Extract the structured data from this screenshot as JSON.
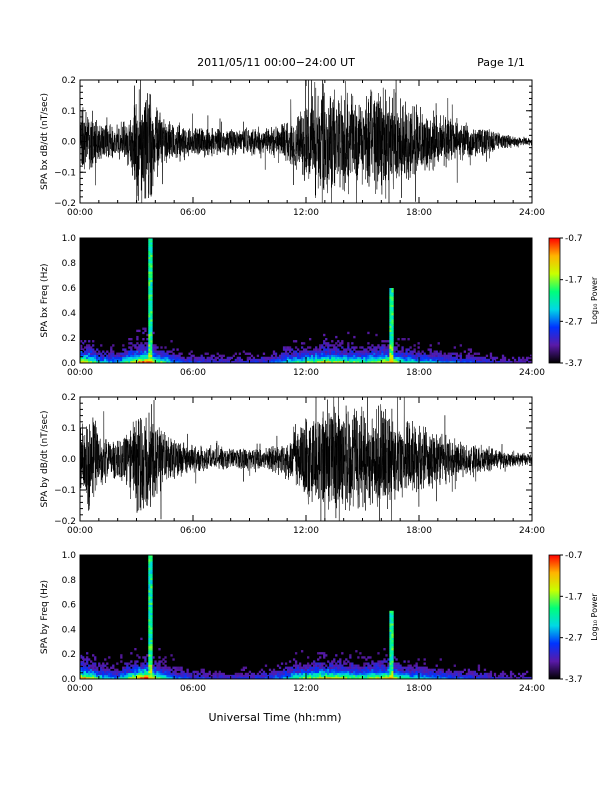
{
  "header": {
    "title": "2011/05/11  00:00−24:00 UT",
    "page": "Page 1/1"
  },
  "xlabel": "Universal Time (hh:mm)",
  "colorbar": {
    "label": "Log₁₀ Power",
    "ticks": [
      "-0.7",
      "-1.7",
      "-2.7",
      "-3.7"
    ],
    "range": [
      -3.7,
      -0.7
    ],
    "colors": [
      "#000000",
      "#5a1aa8",
      "#0033ff",
      "#00d8e6",
      "#00ff7a",
      "#c8ff00",
      "#ffb400",
      "#ff0000"
    ]
  },
  "chart_data": [
    {
      "type": "line",
      "title": "",
      "ylabel": "SPA bx dB/dt (nT/sec)",
      "xlabel": "",
      "xlim": [
        0,
        24
      ],
      "ylim": [
        -0.2,
        0.2
      ],
      "x_ticks": [
        "00:00",
        "06:00",
        "12:00",
        "18:00",
        "24:00"
      ],
      "y_ticks": [
        "0.2",
        "0.1",
        "0.0",
        "−0.1",
        "−0.2"
      ],
      "y_tick_values": [
        0.2,
        0.1,
        0.0,
        -0.1,
        -0.2
      ],
      "envelope": {
        "x": [
          0,
          0.5,
          1,
          2,
          2.5,
          3,
          3.2,
          3.5,
          3.8,
          4,
          4.5,
          5,
          6,
          7,
          8,
          9,
          10,
          11,
          11.5,
          12,
          13,
          14,
          15,
          16,
          16.5,
          17,
          18,
          19,
          20,
          21,
          22,
          23,
          24
        ],
        "amplitude": [
          0.1,
          0.12,
          0.07,
          0.06,
          0.08,
          0.2,
          0.2,
          0.2,
          0.2,
          0.15,
          0.09,
          0.07,
          0.06,
          0.05,
          0.05,
          0.05,
          0.05,
          0.08,
          0.11,
          0.15,
          0.2,
          0.2,
          0.16,
          0.2,
          0.2,
          0.15,
          0.12,
          0.1,
          0.08,
          0.06,
          0.04,
          0.02,
          0.015
        ]
      }
    },
    {
      "type": "heatmap",
      "title": "",
      "ylabel": "SPA bx Freq (Hz)",
      "xlabel": "",
      "xlim": [
        0,
        24
      ],
      "ylim": [
        0,
        1.0
      ],
      "x_ticks": [
        "00:00",
        "06:00",
        "12:00",
        "18:00",
        "24:00"
      ],
      "y_ticks": [
        "1.0",
        "0.8",
        "0.6",
        "0.4",
        "0.2",
        "0.0"
      ],
      "y_tick_values": [
        1.0,
        0.8,
        0.6,
        0.4,
        0.2,
        0.0
      ],
      "value_label": "Log₁₀ Power",
      "activity": {
        "x": [
          0,
          0.5,
          1,
          2,
          3,
          3.5,
          4,
          5,
          6,
          8,
          10,
          11,
          12,
          13,
          14,
          15,
          16,
          16.5,
          17,
          18,
          20,
          22,
          24
        ],
        "level": [
          0.8,
          0.7,
          0.45,
          0.35,
          0.8,
          1.0,
          0.7,
          0.35,
          0.25,
          0.2,
          0.25,
          0.45,
          0.6,
          0.75,
          0.65,
          0.55,
          0.75,
          0.8,
          0.55,
          0.45,
          0.3,
          0.2,
          0.15
        ]
      },
      "line_features": [
        {
          "x": 3.7,
          "fmax": 1.0
        },
        {
          "x": 16.5,
          "fmax": 0.6
        }
      ]
    },
    {
      "type": "line",
      "title": "",
      "ylabel": "SPA by dB/dt (nT/sec)",
      "xlabel": "",
      "xlim": [
        0,
        24
      ],
      "ylim": [
        -0.2,
        0.2
      ],
      "x_ticks": [
        "00:00",
        "06:00",
        "12:00",
        "18:00",
        "24:00"
      ],
      "y_ticks": [
        "0.2",
        "0.1",
        "0.0",
        "−0.1",
        "−0.2"
      ],
      "y_tick_values": [
        0.2,
        0.1,
        0.0,
        -0.1,
        -0.2
      ],
      "envelope": {
        "x": [
          0,
          0.5,
          1,
          2,
          2.5,
          3,
          3.2,
          3.5,
          3.8,
          4,
          4.5,
          5,
          6,
          7,
          8,
          9,
          10,
          11,
          11.5,
          12,
          13,
          14,
          15,
          16,
          16.5,
          17,
          18,
          19,
          20,
          21,
          22,
          23,
          24
        ],
        "amplitude": [
          0.12,
          0.2,
          0.1,
          0.07,
          0.1,
          0.2,
          0.2,
          0.2,
          0.2,
          0.16,
          0.1,
          0.07,
          0.05,
          0.04,
          0.04,
          0.04,
          0.04,
          0.07,
          0.1,
          0.16,
          0.2,
          0.2,
          0.17,
          0.2,
          0.2,
          0.14,
          0.12,
          0.1,
          0.07,
          0.05,
          0.04,
          0.03,
          0.02
        ]
      }
    },
    {
      "type": "heatmap",
      "title": "",
      "ylabel": "SPA by Freq (Hz)",
      "xlabel": "Universal Time (hh:mm)",
      "xlim": [
        0,
        24
      ],
      "ylim": [
        0,
        1.0
      ],
      "x_ticks": [
        "00:00",
        "06:00",
        "12:00",
        "18:00",
        "24:00"
      ],
      "y_ticks": [
        "1.0",
        "0.8",
        "0.6",
        "0.4",
        "0.2",
        "0.0"
      ],
      "y_tick_values": [
        1.0,
        0.8,
        0.6,
        0.4,
        0.2,
        0.0
      ],
      "value_label": "Log₁₀ Power",
      "activity": {
        "x": [
          0,
          0.5,
          1,
          2,
          3,
          3.5,
          4,
          5,
          6,
          8,
          10,
          11,
          12,
          13,
          14,
          15,
          16,
          16.5,
          17,
          18,
          20,
          22,
          24
        ],
        "level": [
          0.85,
          0.75,
          0.5,
          0.35,
          0.8,
          1.0,
          0.7,
          0.35,
          0.25,
          0.2,
          0.25,
          0.45,
          0.65,
          0.75,
          0.7,
          0.6,
          0.75,
          0.8,
          0.55,
          0.45,
          0.3,
          0.2,
          0.15
        ]
      },
      "line_features": [
        {
          "x": 3.7,
          "fmax": 1.0
        },
        {
          "x": 16.5,
          "fmax": 0.55
        }
      ]
    }
  ]
}
